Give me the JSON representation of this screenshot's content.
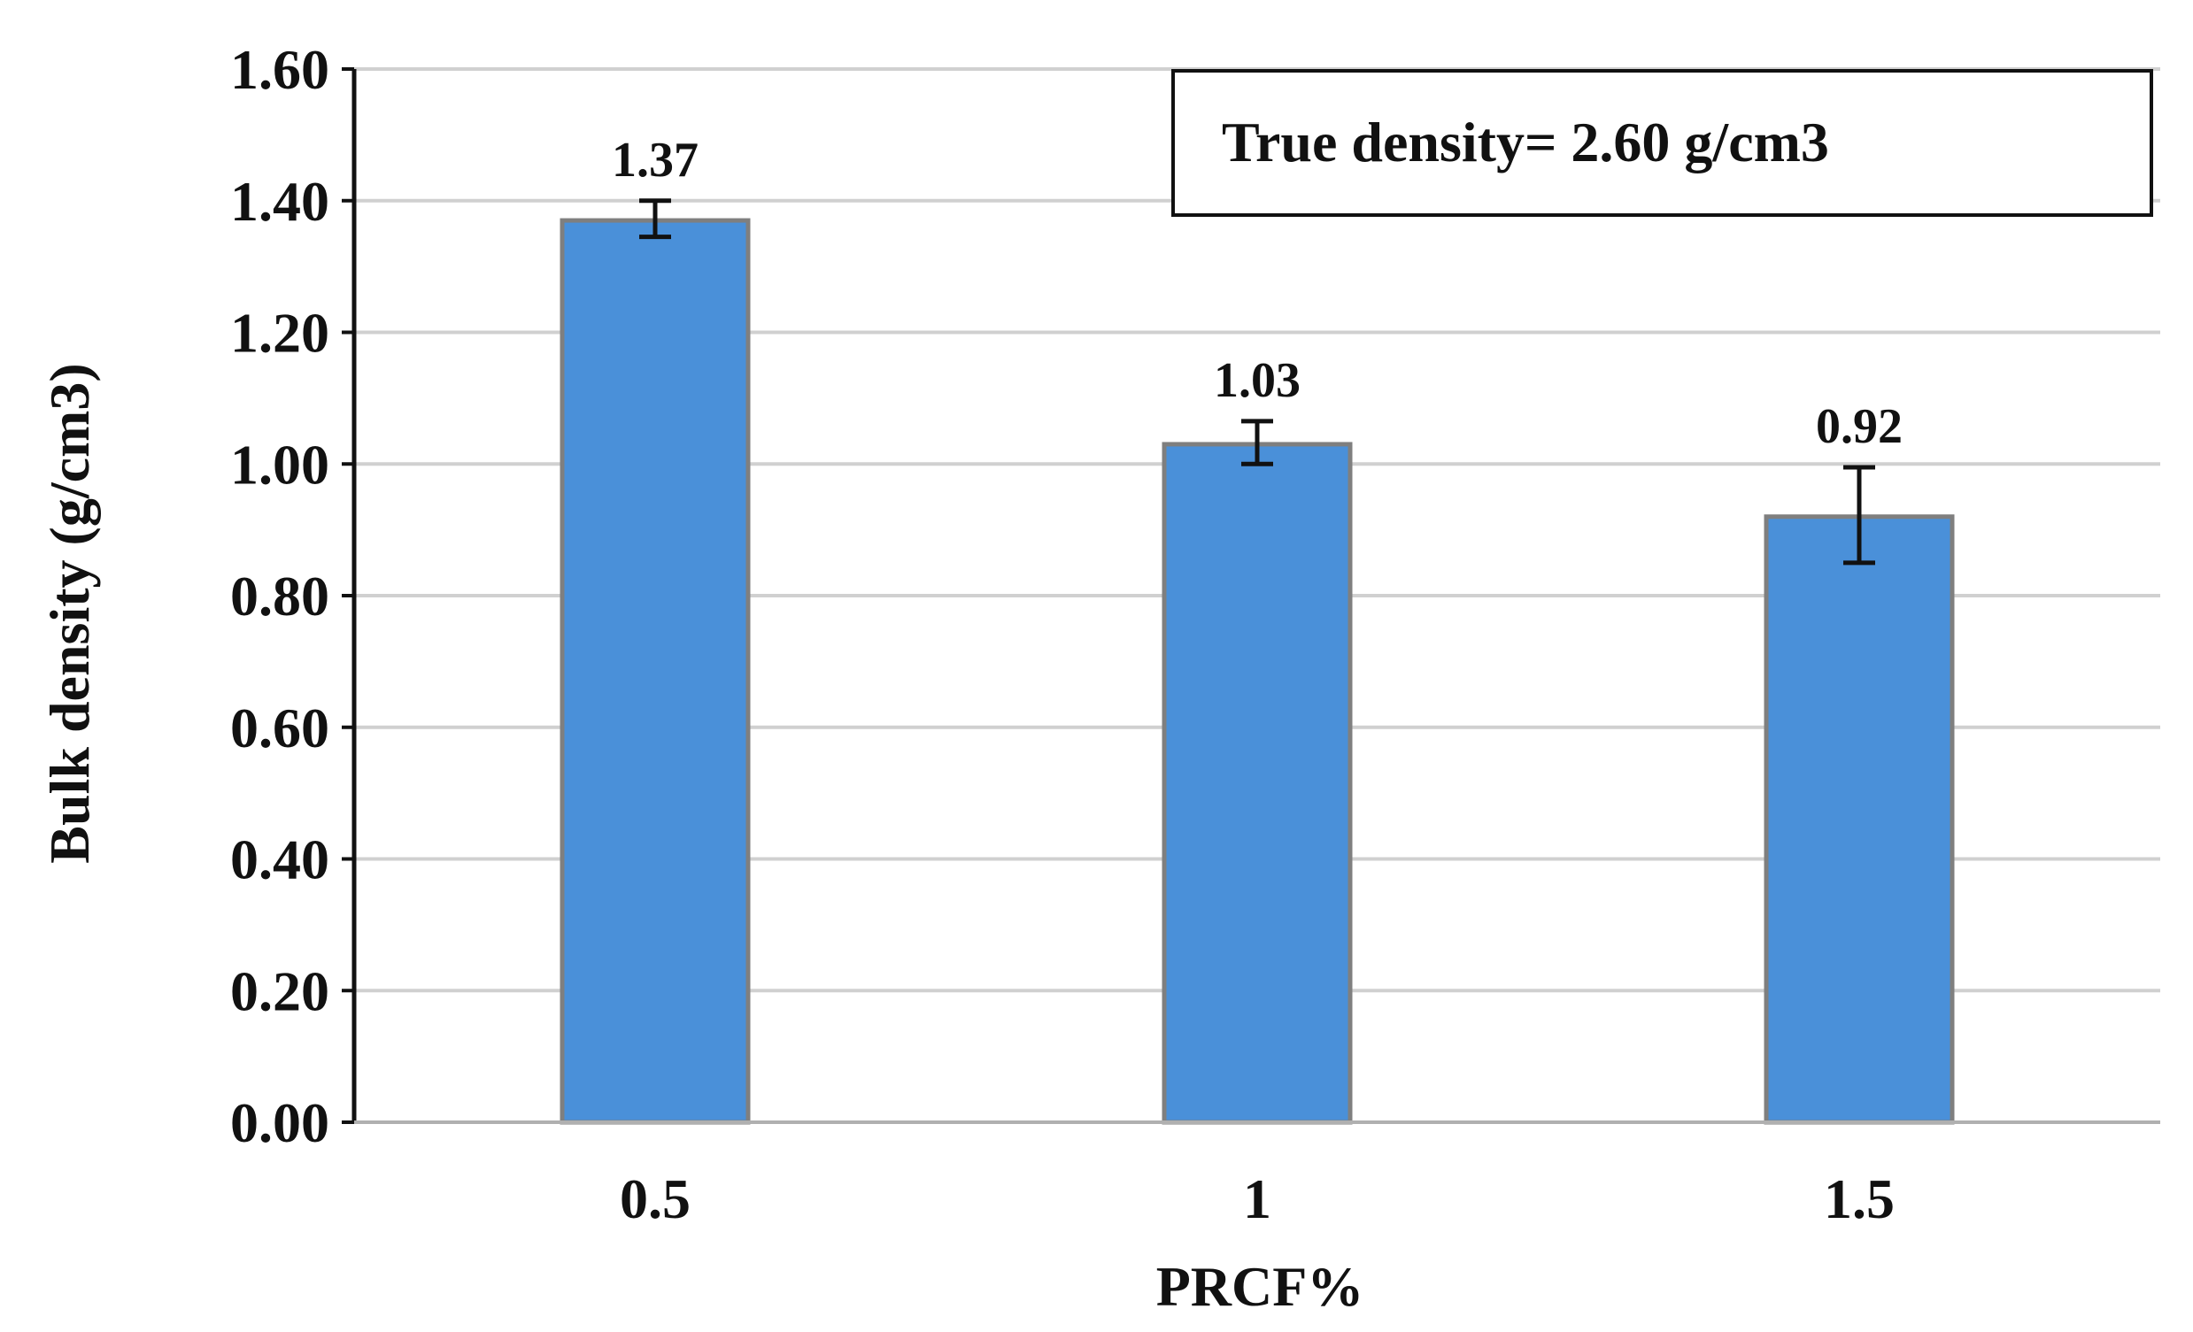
{
  "chart_data": {
    "type": "bar",
    "categories": [
      "0.5",
      "1",
      "1.5"
    ],
    "values": [
      1.37,
      1.03,
      0.92
    ],
    "value_labels": [
      "1.37",
      "1.03",
      "0.92"
    ],
    "error_bars": [
      {
        "low": 1.345,
        "high": 1.4
      },
      {
        "low": 1.0,
        "high": 1.065
      },
      {
        "low": 0.85,
        "high": 0.995
      }
    ],
    "xlabel": "PRCF%",
    "ylabel": "Bulk density (g/cm3)",
    "ylim": [
      0,
      1.6
    ],
    "yticks": [
      "0.00",
      "0.20",
      "0.40",
      "0.60",
      "0.80",
      "1.00",
      "1.20",
      "1.40",
      "1.60"
    ],
    "grid": true,
    "annotation": "True density= 2.60 g/cm3",
    "colors": {
      "bar_fill": "#4a90d9",
      "bar_stroke": "#7f7f7f",
      "grid": "#d0d0d0",
      "axis": "#111111"
    }
  }
}
